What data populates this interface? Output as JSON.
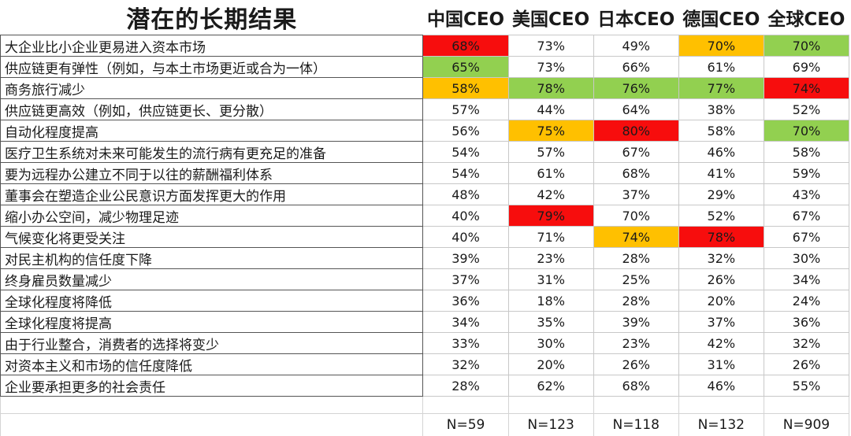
{
  "title": "潜在的长期结果",
  "columns": [
    "中国CEO",
    "美国CEO",
    "日本CEO",
    "德国CEO",
    "全球CEO"
  ],
  "colors": {
    "red": "#f70d0d",
    "orange": "#ffc000",
    "green": "#92d050"
  },
  "rows": [
    {
      "label": "大企业比小企业更易进入资本市场",
      "values": [
        "68%",
        "73%",
        "49%",
        "70%",
        "70%"
      ],
      "highlights": [
        "red",
        "",
        "",
        "orange",
        "green"
      ]
    },
    {
      "label": "供应链更有弹性（例如，与本土市场更近或合为一体）",
      "values": [
        "65%",
        "73%",
        "66%",
        "61%",
        "69%"
      ],
      "highlights": [
        "green",
        "",
        "",
        "",
        ""
      ]
    },
    {
      "label": "商务旅行减少",
      "values": [
        "58%",
        "78%",
        "76%",
        "77%",
        "74%"
      ],
      "highlights": [
        "orange",
        "green",
        "green",
        "green",
        "red"
      ]
    },
    {
      "label": "供应链更高效（例如，供应链更长、更分散）",
      "values": [
        "57%",
        "44%",
        "64%",
        "38%",
        "52%"
      ],
      "highlights": [
        "",
        "",
        "",
        "",
        ""
      ]
    },
    {
      "label": "自动化程度提高",
      "values": [
        "56%",
        "75%",
        "80%",
        "58%",
        "70%"
      ],
      "highlights": [
        "",
        "orange",
        "red",
        "",
        "green"
      ]
    },
    {
      "label": "医疗卫生系统对未来可能发生的流行病有更充足的准备",
      "values": [
        "54%",
        "57%",
        "67%",
        "46%",
        "58%"
      ],
      "highlights": [
        "",
        "",
        "",
        "",
        ""
      ]
    },
    {
      "label": "要为远程办公建立不同于以往的薪酬福利体系",
      "values": [
        "54%",
        "61%",
        "68%",
        "41%",
        "59%"
      ],
      "highlights": [
        "",
        "",
        "",
        "",
        ""
      ]
    },
    {
      "label": "董事会在塑造企业公民意识方面发挥更大的作用",
      "values": [
        "48%",
        "42%",
        "37%",
        "29%",
        "43%"
      ],
      "highlights": [
        "",
        "",
        "",
        "",
        ""
      ]
    },
    {
      "label": "缩小办公空间，减少物理足迹",
      "values": [
        "40%",
        "79%",
        "70%",
        "52%",
        "67%"
      ],
      "highlights": [
        "",
        "red",
        "",
        "",
        ""
      ]
    },
    {
      "label": "气候变化将更受关注",
      "values": [
        "40%",
        "71%",
        "74%",
        "78%",
        "67%"
      ],
      "highlights": [
        "",
        "",
        "orange",
        "red",
        ""
      ]
    },
    {
      "label": "对民主机构的信任度下降",
      "values": [
        "39%",
        "23%",
        "28%",
        "32%",
        "30%"
      ],
      "highlights": [
        "",
        "",
        "",
        "",
        ""
      ]
    },
    {
      "label": "终身雇员数量减少",
      "values": [
        "37%",
        "31%",
        "25%",
        "26%",
        "34%"
      ],
      "highlights": [
        "",
        "",
        "",
        "",
        ""
      ]
    },
    {
      "label": "全球化程度将降低",
      "values": [
        "36%",
        "18%",
        "28%",
        "20%",
        "24%"
      ],
      "highlights": [
        "",
        "",
        "",
        "",
        ""
      ]
    },
    {
      "label": "全球化程度将提高",
      "values": [
        "34%",
        "35%",
        "39%",
        "37%",
        "36%"
      ],
      "highlights": [
        "",
        "",
        "",
        "",
        ""
      ]
    },
    {
      "label": "由于行业整合，消费者的选择将变少",
      "values": [
        "33%",
        "30%",
        "23%",
        "42%",
        "32%"
      ],
      "highlights": [
        "",
        "",
        "",
        "",
        ""
      ]
    },
    {
      "label": "对资本主义和市场的信任度降低",
      "values": [
        "32%",
        "20%",
        "26%",
        "31%",
        "26%"
      ],
      "highlights": [
        "",
        "",
        "",
        "",
        ""
      ]
    },
    {
      "label": "企业要承担更多的社会责任",
      "values": [
        "28%",
        "62%",
        "68%",
        "46%",
        "55%"
      ],
      "highlights": [
        "",
        "",
        "",
        "",
        ""
      ]
    }
  ],
  "sample_sizes": [
    "N=59",
    "N=123",
    "N=118",
    "N=132",
    "N=909"
  ]
}
